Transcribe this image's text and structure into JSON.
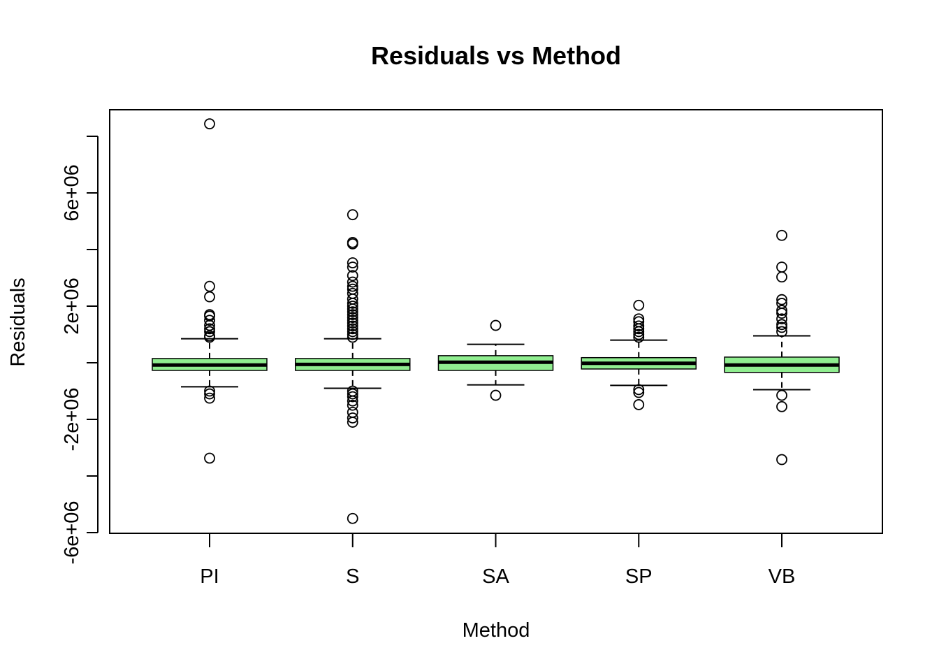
{
  "chart_data": {
    "type": "boxplot",
    "title": "Residuals vs Method",
    "xlabel": "Method",
    "ylabel": "Residuals",
    "ylim": [
      -6000000,
      8000000
    ],
    "y_ticks": [
      -6000000,
      -4000000,
      -2000000,
      0,
      2000000,
      4000000,
      6000000,
      8000000
    ],
    "y_tick_labels": [
      "-6e+06",
      "",
      "-2e+06",
      "",
      "2e+06",
      "",
      "6e+06",
      ""
    ],
    "categories": [
      "PI",
      "S",
      "SA",
      "SP",
      "VB"
    ],
    "box_color": "#90EE90",
    "boxes": [
      {
        "name": "PI",
        "whisker_low": -850000,
        "q1": -270000,
        "median": -80000,
        "q3": 150000,
        "whisker_high": 850000,
        "outliers": [
          8440000,
          2700000,
          2330000,
          1700000,
          1650000,
          1500000,
          1320000,
          1200000,
          1100000,
          950000,
          900000,
          -1000000,
          -1100000,
          -1250000,
          -3370000
        ]
      },
      {
        "name": "S",
        "whisker_low": -900000,
        "q1": -270000,
        "median": -60000,
        "q3": 150000,
        "whisker_high": 850000,
        "outliers": [
          5230000,
          4250000,
          4200000,
          3530000,
          3380000,
          3080000,
          2850000,
          2700000,
          2600000,
          2450000,
          2250000,
          2100000,
          2000000,
          1900000,
          1800000,
          1700000,
          1600000,
          1500000,
          1400000,
          1300000,
          1200000,
          1100000,
          1000000,
          900000,
          -1000000,
          -1100000,
          -1200000,
          -1350000,
          -1500000,
          -1750000,
          -1950000,
          -2100000,
          -5500000
        ]
      },
      {
        "name": "SA",
        "whisker_low": -780000,
        "q1": -270000,
        "median": 20000,
        "q3": 250000,
        "whisker_high": 650000,
        "outliers": [
          1320000,
          -1150000
        ]
      },
      {
        "name": "SP",
        "whisker_low": -800000,
        "q1": -220000,
        "median": -20000,
        "q3": 180000,
        "whisker_high": 800000,
        "outliers": [
          2030000,
          1550000,
          1450000,
          1300000,
          1200000,
          1100000,
          1000000,
          900000,
          -950000,
          -1050000,
          -1480000
        ]
      },
      {
        "name": "VB",
        "whisker_low": -950000,
        "q1": -340000,
        "median": -80000,
        "q3": 200000,
        "whisker_high": 950000,
        "outliers": [
          4500000,
          3380000,
          3030000,
          2230000,
          2100000,
          1850000,
          1750000,
          1550000,
          1350000,
          1250000,
          1100000,
          -1150000,
          -1550000,
          -3420000
        ]
      }
    ]
  }
}
